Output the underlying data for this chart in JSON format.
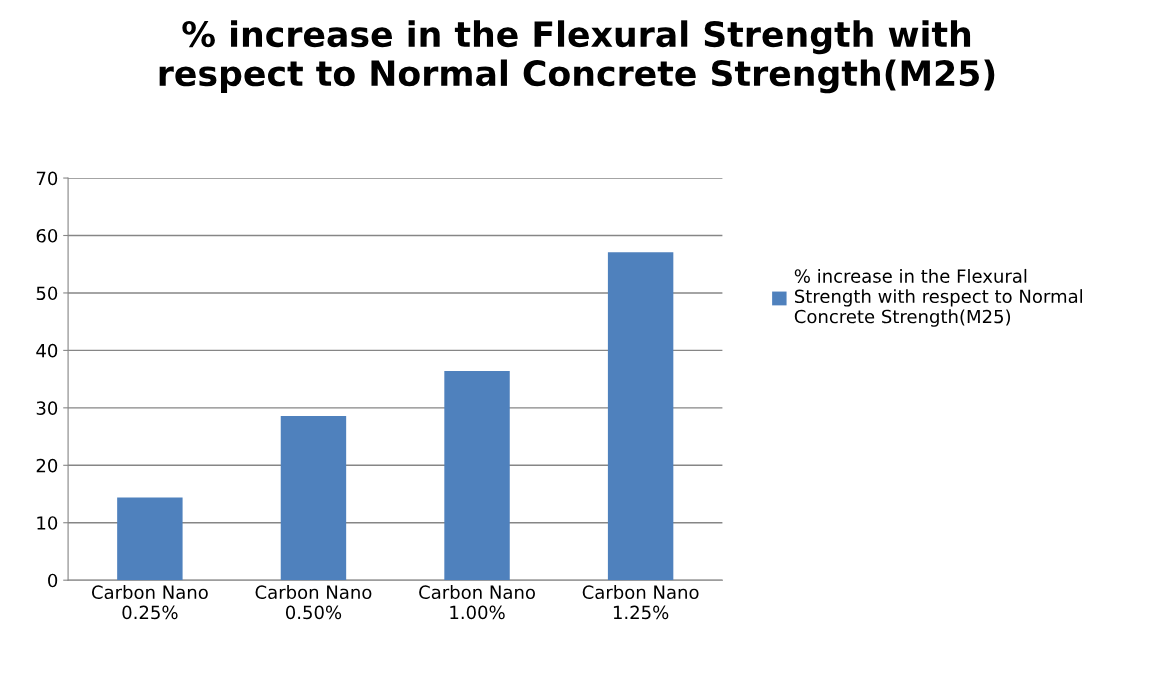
{
  "chart_data": {
    "type": "bar",
    "title": "% increase in the Flexural Strength with\nrespect to Normal Concrete Strength(M25)",
    "categories": [
      "Carbon Nano\n0.25%",
      "Carbon Nano\n0.50%",
      "Carbon Nano\n1.00%",
      "Carbon Nano\n1.25%"
    ],
    "series": [
      {
        "name": "% increase in the Flexural\nStrength with respect to Normal\nConcrete Strength(M25)",
        "color": "#4f81bd",
        "values": [
          14.4,
          28.6,
          36.4,
          57.1
        ]
      }
    ],
    "ylim": [
      0,
      70
    ],
    "yticks": [
      0,
      10,
      20,
      30,
      40,
      50,
      60,
      70
    ],
    "grid": "y",
    "legend": "right"
  }
}
